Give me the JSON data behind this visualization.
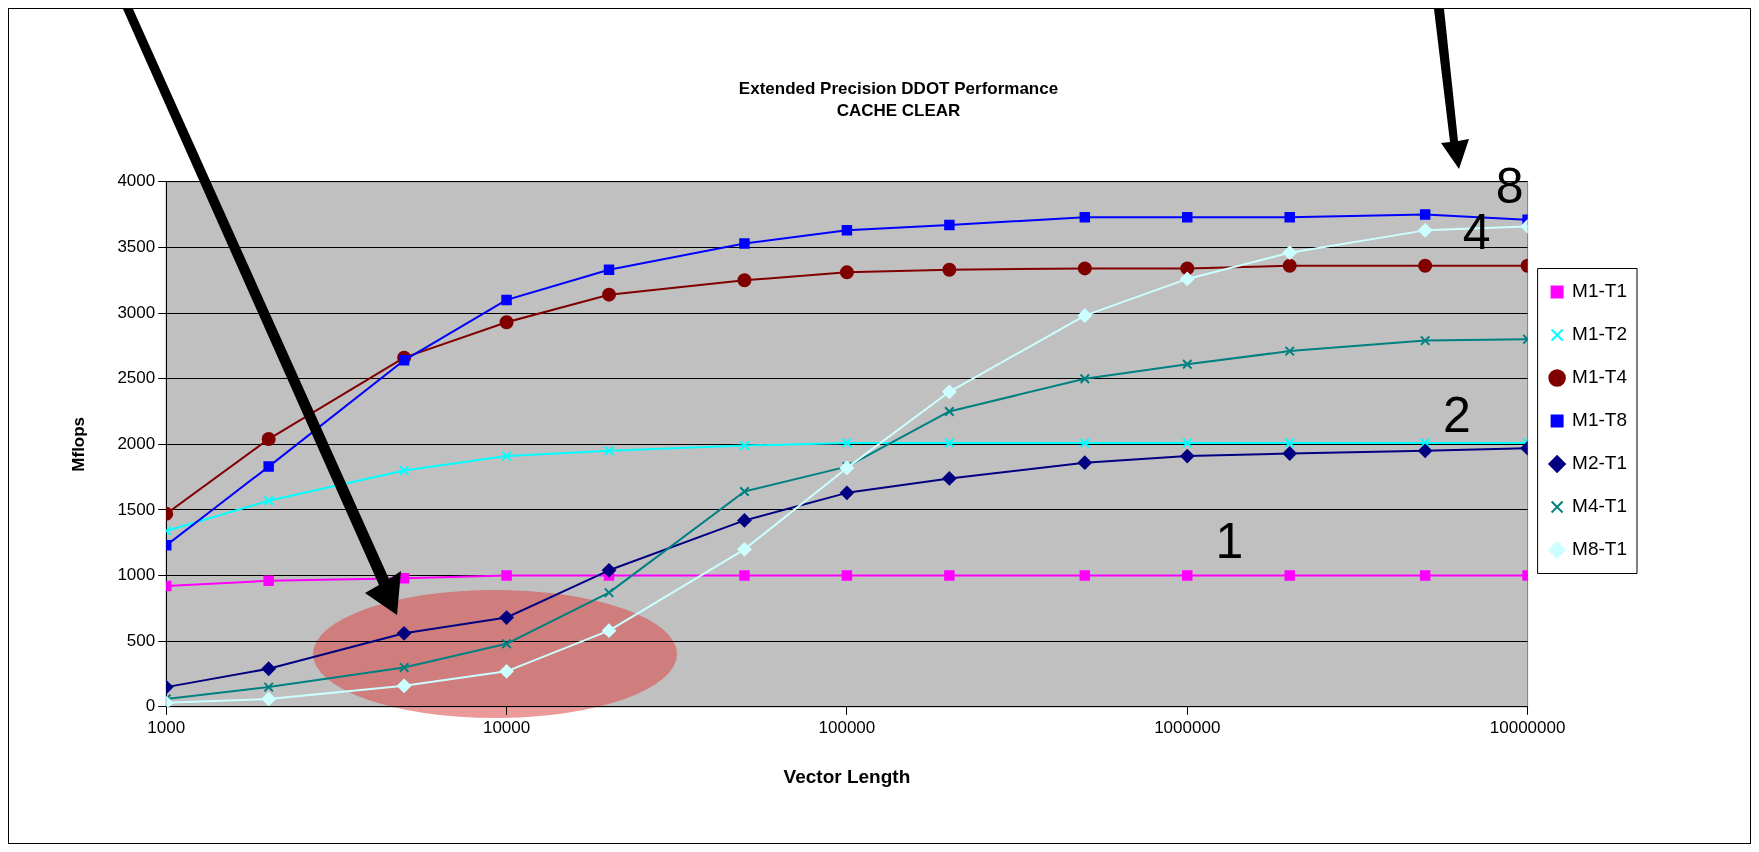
{
  "chart_data": {
    "type": "line",
    "title": "Extended Precision DDOT Performance",
    "subtitle": "CACHE CLEAR",
    "xlabel": "Vector Length",
    "ylabel": "Mflops",
    "x": [
      1000,
      2000,
      5000,
      10000,
      20000,
      50000,
      100000,
      200000,
      500000,
      1000000,
      2000000,
      5000000,
      10000000
    ],
    "log": "x",
    "xlim": [
      1000,
      10000000
    ],
    "xticks": [
      1000,
      10000,
      100000,
      1000000,
      10000000
    ],
    "ylim": [
      0,
      4000
    ],
    "yticks": [
      0,
      500,
      1000,
      1500,
      2000,
      2500,
      3000,
      3500,
      4000
    ],
    "grid": "y",
    "legend": "right",
    "line_style": "solid",
    "series": [
      {
        "name": "M1-T1",
        "color": "#ff00ff",
        "marker": "square",
        "values": [
          920,
          960,
          980,
          1000,
          1000,
          1000,
          1000,
          1000,
          1000,
          1000,
          1000,
          1000,
          1000
        ]
      },
      {
        "name": "M1-T2",
        "color": "#00ffff",
        "marker": "cross",
        "values": [
          1340,
          1570,
          1800,
          1910,
          1950,
          1990,
          2010,
          2010,
          2010,
          2010,
          2010,
          2010,
          2010
        ]
      },
      {
        "name": "M1-T4",
        "color": "#800000",
        "marker": "circle",
        "values": [
          1470,
          2040,
          2660,
          2930,
          3140,
          3250,
          3310,
          3330,
          3340,
          3340,
          3360,
          3360,
          3360
        ]
      },
      {
        "name": "M1-T8",
        "color": "#0000ff",
        "marker": "square",
        "values": [
          1230,
          1830,
          2640,
          3100,
          3330,
          3530,
          3630,
          3670,
          3730,
          3730,
          3730,
          3750,
          3710
        ]
      },
      {
        "name": "M2-T1",
        "color": "#000080",
        "marker": "diamond",
        "values": [
          150,
          290,
          560,
          680,
          1040,
          1420,
          1630,
          1740,
          1860,
          1910,
          1930,
          1950,
          1970
        ]
      },
      {
        "name": "M4-T1",
        "color": "#008080",
        "marker": "cross",
        "values": [
          60,
          150,
          300,
          480,
          870,
          1640,
          1830,
          2250,
          2500,
          2610,
          2710,
          2790,
          2800
        ]
      },
      {
        "name": "M8-T1",
        "color": "#ccffff",
        "marker": "diamond",
        "values": [
          30,
          60,
          160,
          270,
          580,
          1200,
          1820,
          2400,
          2980,
          3260,
          3460,
          3630,
          3660
        ]
      }
    ],
    "annotations": [
      {
        "text": "1",
        "x": 1500000,
        "y": 1000
      },
      {
        "text": "2",
        "x": 7000000,
        "y": 1960
      },
      {
        "text": "4",
        "x": 8000000,
        "y": 3360
      },
      {
        "text": "8",
        "x": 10000000,
        "y": 3710
      }
    ]
  }
}
